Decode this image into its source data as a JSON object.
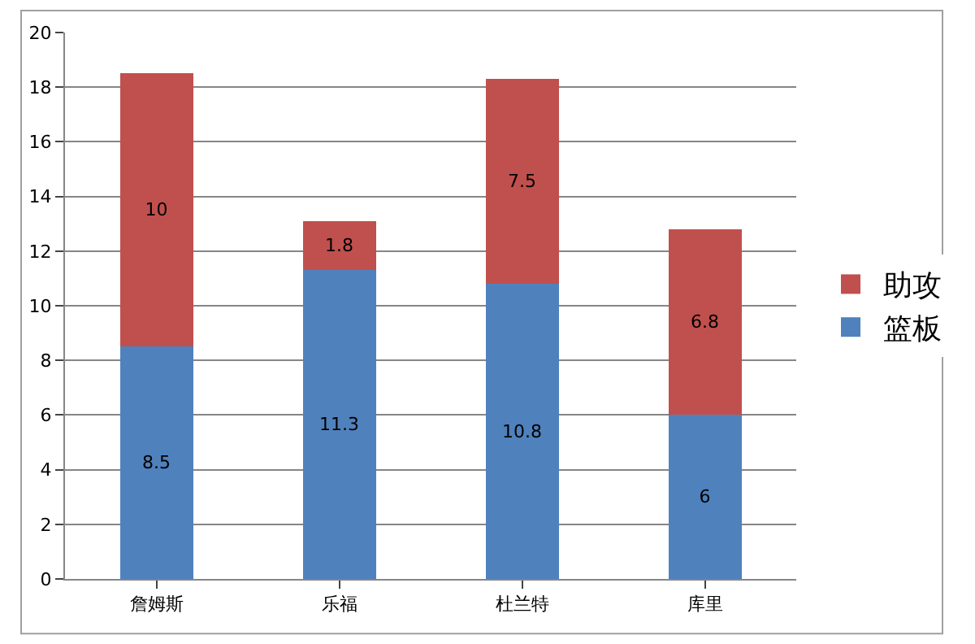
{
  "chart_data": {
    "type": "bar",
    "stacked": true,
    "categories": [
      "詹姆斯",
      "乐福",
      "杜兰特",
      "库里"
    ],
    "series": [
      {
        "name": "篮板",
        "color": "#4f81bd",
        "values": [
          8.5,
          11.3,
          10.8,
          6
        ]
      },
      {
        "name": "助攻",
        "color": "#c0504d",
        "values": [
          10,
          1.8,
          7.5,
          6.8
        ]
      }
    ],
    "ylim": [
      0,
      20
    ],
    "yticks": [
      0,
      2,
      4,
      6,
      8,
      10,
      12,
      14,
      16,
      18,
      20
    ],
    "grid": "y",
    "legend": "right",
    "data_labels": true
  }
}
